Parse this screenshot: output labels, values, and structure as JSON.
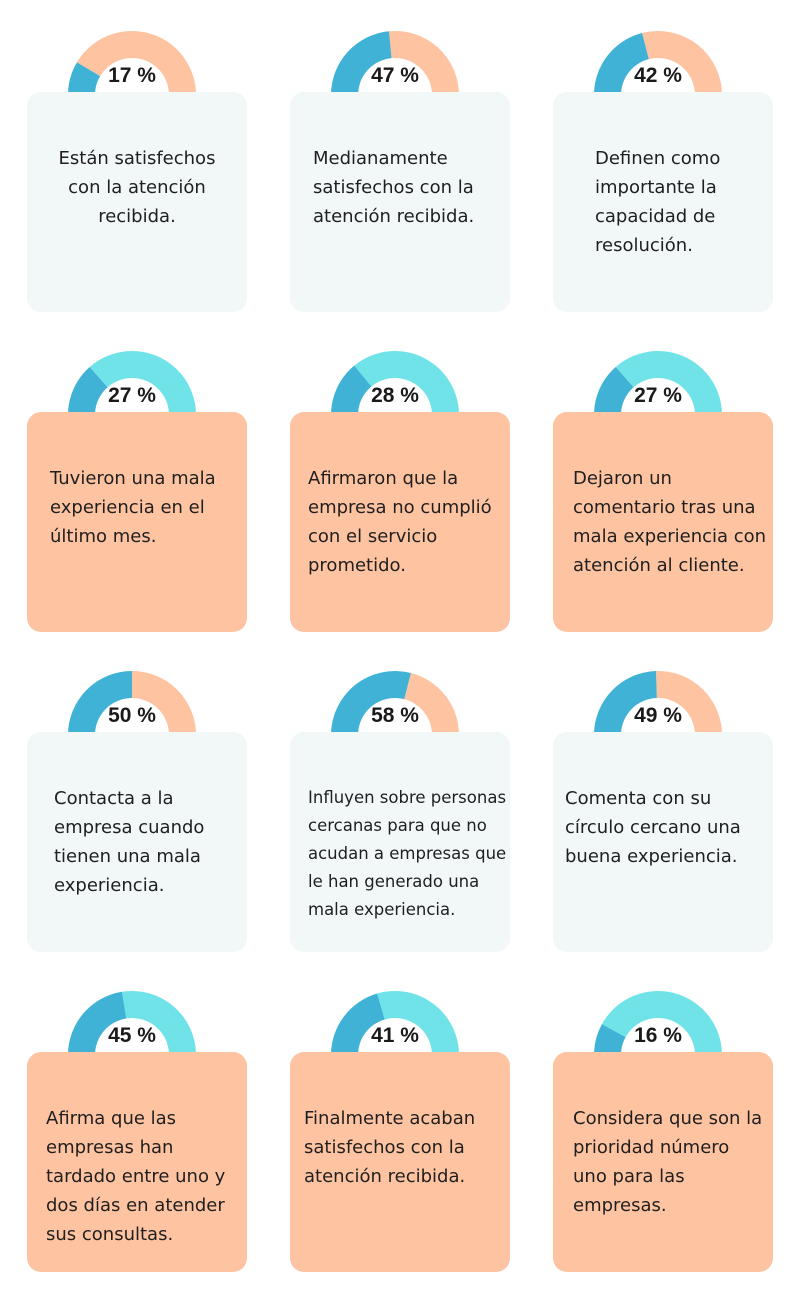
{
  "colors": {
    "segment_blue": "#3fb2d6",
    "track_peach": "#fec3a1",
    "track_cyan": "#6fe3e8",
    "card_light": "#f2f7f7",
    "card_peach": "#fec3a1",
    "text": "#1f1f1f"
  },
  "stats": [
    {
      "value": 17,
      "pct_label": "17 %",
      "text": "Están satisfechos con la atención recibida.",
      "track": "peach",
      "card": "light"
    },
    {
      "value": 47,
      "pct_label": "47 %",
      "text": "Medianamente satisfechos con la atención recibida.",
      "track": "peach",
      "card": "light"
    },
    {
      "value": 42,
      "pct_label": "42 %",
      "text": "Definen como importante la capacidad de resolución.",
      "track": "peach",
      "card": "light"
    },
    {
      "value": 27,
      "pct_label": "27 %",
      "text": "Tuvieron una mala experiencia en el último mes.",
      "track": "cyan",
      "card": "peach"
    },
    {
      "value": 28,
      "pct_label": "28 %",
      "text": "Afirmaron que la empresa no cumplió con el servicio prometido.",
      "track": "cyan",
      "card": "peach"
    },
    {
      "value": 27,
      "pct_label": "27 %",
      "text": "Dejaron un comentario tras una mala experiencia con atención al cliente.",
      "track": "cyan",
      "card": "peach"
    },
    {
      "value": 50,
      "pct_label": "50 %",
      "text": "Contacta a la empresa cuando tienen una mala experiencia.",
      "track": "peach",
      "card": "light"
    },
    {
      "value": 58,
      "pct_label": "58 %",
      "text": "Influyen sobre personas cercanas para que no acudan a empresas que le han generado una mala experiencia.",
      "track": "peach",
      "card": "light"
    },
    {
      "value": 49,
      "pct_label": "49 %",
      "text": "Comenta con su círculo cercano una buena experiencia.",
      "track": "peach",
      "card": "light"
    },
    {
      "value": 45,
      "pct_label": "45 %",
      "text": "Afirma que las empresas han tardado entre uno y dos días en atender sus consultas.",
      "track": "cyan",
      "card": "peach"
    },
    {
      "value": 41,
      "pct_label": "41 %",
      "text": "Finalmente acaban satisfechos con la atención recibida.",
      "track": "cyan",
      "card": "peach"
    },
    {
      "value": 16,
      "pct_label": "16 %",
      "text": "Considera que son la prioridad número uno para las empresas.",
      "track": "cyan",
      "card": "peach"
    }
  ]
}
